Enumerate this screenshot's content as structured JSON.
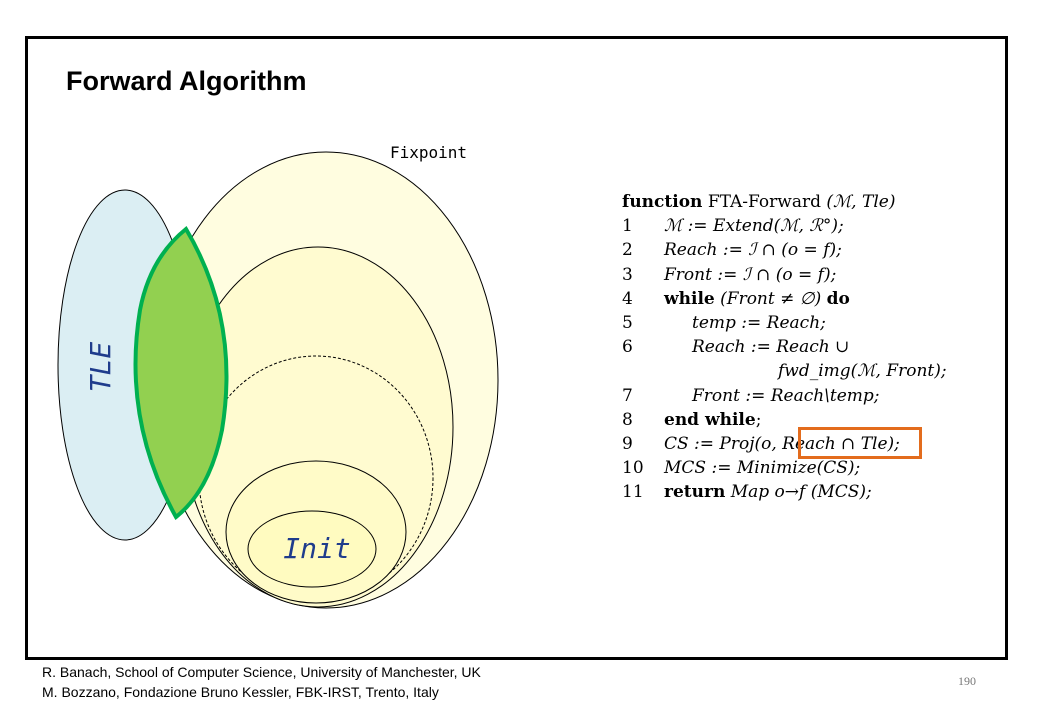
{
  "slide": {
    "title": "Forward Algorithm",
    "page_number": "190"
  },
  "diagram": {
    "fixpoint_label": "Fixpoint",
    "tle_label": "TLE",
    "init_label": "Init",
    "colors": {
      "tle_fill": "#dbeef3",
      "fixpoint_fill": "#fffde0",
      "intersection_fill": "#92d050",
      "intersection_stroke": "#00b050",
      "label_blue": "#1f3c8c",
      "highlight_box": "#e36c1d"
    }
  },
  "algorithm": {
    "header_kw": "function",
    "header_name": "FTA-Forward",
    "header_args": "(ℳ, Tle)",
    "lines": [
      {
        "num": "1",
        "kw": "",
        "text": "ℳ := Extend(ℳ, ℛ°);"
      },
      {
        "num": "2",
        "kw": "",
        "text": "Reach := ℐ ∩ (o = f);"
      },
      {
        "num": "3",
        "kw": "",
        "text": "Front := ℐ ∩ (o = f);"
      },
      {
        "num": "4",
        "kw": "while",
        "text": "(Front ≠ ∅)",
        "kw2": "do"
      },
      {
        "num": "5",
        "kw": "",
        "text": "temp := Reach;"
      },
      {
        "num": "6",
        "kw": "",
        "text": "Reach := Reach ∪"
      },
      {
        "num": "",
        "kw": "",
        "text": "fwd_img(ℳ, Front);"
      },
      {
        "num": "7",
        "kw": "",
        "text": "Front := Reach\\temp;"
      },
      {
        "num": "8",
        "kw": "end while",
        "text": ";"
      },
      {
        "num": "9",
        "kw": "",
        "text": "CS := Proj(o, Reach ∩ Tle);"
      },
      {
        "num": "10",
        "kw": "",
        "text": "MCS := Minimize(CS);"
      },
      {
        "num": "11",
        "kw": "return",
        "text": "Map o→f (MCS);"
      }
    ]
  },
  "footer": {
    "line1": "R. Banach, School of  Computer  Science, University of Manchester,  UK",
    "line2": "M. Bozzano, Fondazione  Bruno Kessler, FBK-IRST, Trento, Italy"
  }
}
